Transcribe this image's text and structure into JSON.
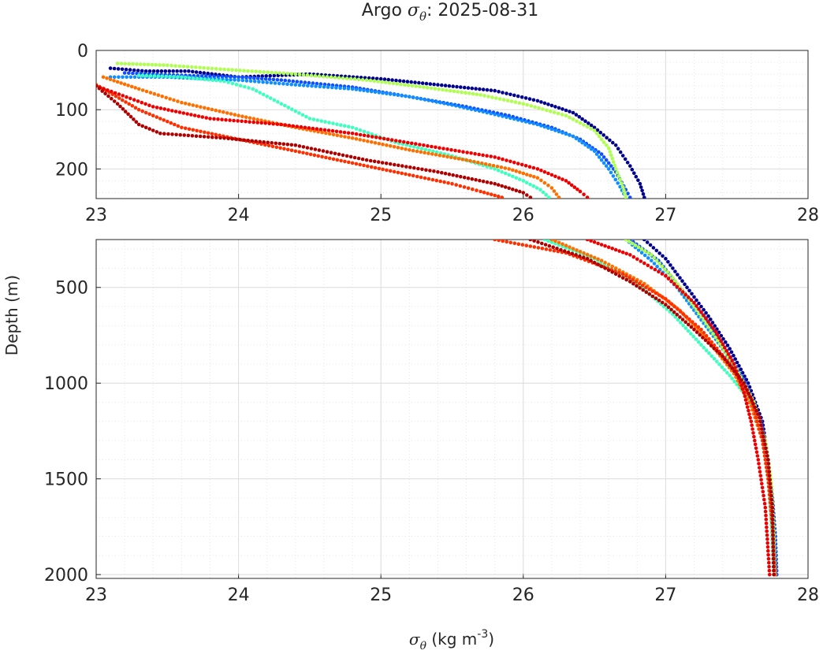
{
  "title": {
    "prefix": "Argo ",
    "symbol": "σ",
    "symbol_sub": "θ",
    "suffix": ": 2025-08-31"
  },
  "xlabel": {
    "symbol": "σ",
    "symbol_sub": "θ",
    "units_prefix": " (kg m",
    "units_exp": "-3",
    "units_suffix": ")"
  },
  "ylabel": "Depth (m)",
  "chart_data": [
    {
      "type": "scatter",
      "panel": "upper",
      "xlim": [
        23,
        28
      ],
      "ylim": [
        0,
        250
      ],
      "y_reversed": true,
      "xticks": [
        "23",
        "24",
        "25",
        "26",
        "27",
        "28"
      ],
      "yticks": [
        "0",
        "100",
        "200"
      ],
      "xtick_values": [
        23,
        24,
        25,
        26,
        27,
        28
      ],
      "ytick_values": [
        0,
        100,
        200
      ],
      "grid": true,
      "minor_grid": true,
      "series": [
        {
          "color": "#00008f",
          "points": [
            [
              23.1,
              30
            ],
            [
              23.35,
              35
            ],
            [
              23.65,
              35
            ],
            [
              24.0,
              45
            ],
            [
              24.5,
              40
            ],
            [
              25.0,
              48
            ],
            [
              25.4,
              58
            ],
            [
              25.8,
              68
            ],
            [
              26.1,
              85
            ],
            [
              26.35,
              105
            ],
            [
              26.5,
              130
            ],
            [
              26.65,
              160
            ],
            [
              26.75,
              195
            ],
            [
              26.82,
              225
            ],
            [
              26.85,
              248
            ]
          ]
        },
        {
          "color": "#0f4fff",
          "points": [
            [
              23.2,
              38
            ],
            [
              23.6,
              42
            ],
            [
              24.0,
              45
            ],
            [
              24.3,
              50
            ],
            [
              24.8,
              62
            ],
            [
              25.2,
              78
            ],
            [
              25.6,
              95
            ],
            [
              25.9,
              110
            ],
            [
              26.2,
              130
            ],
            [
              26.4,
              150
            ],
            [
              26.55,
              175
            ],
            [
              26.65,
              205
            ],
            [
              26.72,
              235
            ],
            [
              26.75,
              248
            ]
          ]
        },
        {
          "color": "#0f8fff",
          "points": [
            [
              23.1,
              45
            ],
            [
              23.5,
              45
            ],
            [
              24.0,
              50
            ],
            [
              24.4,
              58
            ],
            [
              24.8,
              65
            ],
            [
              25.2,
              78
            ],
            [
              25.5,
              92
            ],
            [
              25.8,
              108
            ],
            [
              26.1,
              125
            ],
            [
              26.35,
              145
            ],
            [
              26.5,
              170
            ],
            [
              26.6,
              200
            ],
            [
              26.68,
              230
            ],
            [
              26.72,
              248
            ]
          ]
        },
        {
          "color": "#3fffbf",
          "points": [
            [
              23.3,
              42
            ],
            [
              23.6,
              45
            ],
            [
              23.9,
              52
            ],
            [
              24.1,
              65
            ],
            [
              24.3,
              90
            ],
            [
              24.5,
              115
            ],
            [
              24.8,
              130
            ],
            [
              25.1,
              155
            ],
            [
              25.5,
              178
            ],
            [
              25.8,
              200
            ],
            [
              26.0,
              220
            ],
            [
              26.12,
              235
            ],
            [
              26.18,
              248
            ]
          ]
        },
        {
          "color": "#afff4f",
          "points": [
            [
              23.15,
              22
            ],
            [
              23.5,
              25
            ],
            [
              23.9,
              32
            ],
            [
              24.4,
              40
            ],
            [
              24.9,
              50
            ],
            [
              25.3,
              62
            ],
            [
              25.7,
              75
            ],
            [
              26.0,
              90
            ],
            [
              26.3,
              110
            ],
            [
              26.5,
              135
            ],
            [
              26.6,
              165
            ],
            [
              26.65,
              200
            ],
            [
              26.7,
              230
            ],
            [
              26.72,
              248
            ]
          ]
        },
        {
          "color": "#ff6f00",
          "points": [
            [
              23.05,
              45
            ],
            [
              23.3,
              65
            ],
            [
              23.6,
              88
            ],
            [
              24.0,
              110
            ],
            [
              24.4,
              130
            ],
            [
              24.8,
              148
            ],
            [
              25.2,
              168
            ],
            [
              25.6,
              185
            ],
            [
              25.9,
              200
            ],
            [
              26.1,
              215
            ],
            [
              26.2,
              232
            ],
            [
              26.25,
              248
            ]
          ]
        },
        {
          "color": "#ff2f00",
          "points": [
            [
              23.0,
              58
            ],
            [
              23.3,
              100
            ],
            [
              23.6,
              130
            ],
            [
              24.0,
              150
            ],
            [
              24.4,
              170
            ],
            [
              24.8,
              190
            ],
            [
              25.2,
              210
            ],
            [
              25.5,
              225
            ],
            [
              25.7,
              238
            ],
            [
              25.85,
              248
            ]
          ]
        },
        {
          "color": "#ef0000",
          "points": [
            [
              23.0,
              60
            ],
            [
              23.4,
              95
            ],
            [
              23.8,
              115
            ],
            [
              24.3,
              125
            ],
            [
              24.8,
              140
            ],
            [
              25.3,
              160
            ],
            [
              25.8,
              180
            ],
            [
              26.1,
              200
            ],
            [
              26.3,
              220
            ],
            [
              26.4,
              238
            ],
            [
              26.45,
              248
            ]
          ]
        },
        {
          "color": "#af0000",
          "points": [
            [
              23.0,
              60
            ],
            [
              23.15,
              90
            ],
            [
              23.3,
              125
            ],
            [
              23.45,
              140
            ],
            [
              23.9,
              148
            ],
            [
              24.4,
              160
            ],
            [
              24.9,
              185
            ],
            [
              25.4,
              205
            ],
            [
              25.8,
              225
            ],
            [
              26.0,
              240
            ],
            [
              26.05,
              248
            ]
          ]
        }
      ]
    },
    {
      "type": "scatter",
      "panel": "lower",
      "xlim": [
        23,
        28
      ],
      "ylim": [
        250,
        2020
      ],
      "y_reversed": true,
      "xticks": [
        "23",
        "24",
        "25",
        "26",
        "27",
        "28"
      ],
      "yticks": [
        "500",
        "1000",
        "1500",
        "2000"
      ],
      "xtick_values": [
        23,
        24,
        25,
        26,
        27,
        28
      ],
      "ytick_values": [
        500,
        1000,
        1500,
        2000
      ],
      "grid": true,
      "minor_grid": true,
      "series": [
        {
          "color": "#00008f",
          "points": [
            [
              26.85,
              250
            ],
            [
              27.0,
              350
            ],
            [
              27.15,
              500
            ],
            [
              27.3,
              650
            ],
            [
              27.45,
              820
            ],
            [
              27.58,
              1000
            ],
            [
              27.68,
              1200
            ],
            [
              27.72,
              1400
            ],
            [
              27.75,
              1600
            ],
            [
              27.77,
              1800
            ],
            [
              27.78,
              2000
            ]
          ]
        },
        {
          "color": "#0f4fff",
          "points": [
            [
              26.75,
              250
            ],
            [
              26.95,
              360
            ],
            [
              27.1,
              500
            ],
            [
              27.28,
              660
            ],
            [
              27.43,
              830
            ],
            [
              27.56,
              1000
            ],
            [
              27.67,
              1200
            ],
            [
              27.72,
              1400
            ],
            [
              27.75,
              1600
            ],
            [
              27.77,
              1800
            ],
            [
              27.78,
              2000
            ]
          ]
        },
        {
          "color": "#0f8fff",
          "points": [
            [
              26.72,
              250
            ],
            [
              26.9,
              360
            ],
            [
              27.08,
              500
            ],
            [
              27.25,
              670
            ],
            [
              27.42,
              840
            ],
            [
              27.55,
              1010
            ],
            [
              27.66,
              1200
            ],
            [
              27.71,
              1400
            ],
            [
              27.74,
              1600
            ],
            [
              27.76,
              1800
            ],
            [
              27.77,
              2000
            ]
          ]
        },
        {
          "color": "#3fffbf",
          "points": [
            [
              26.15,
              250
            ],
            [
              26.5,
              350
            ],
            [
              26.8,
              480
            ],
            [
              27.05,
              640
            ],
            [
              27.25,
              800
            ],
            [
              27.45,
              960
            ],
            [
              27.6,
              1100
            ],
            [
              27.68,
              1300
            ],
            [
              27.72,
              1500
            ],
            [
              27.74,
              1700
            ],
            [
              27.76,
              2000
            ]
          ]
        },
        {
          "color": "#afff4f",
          "points": [
            [
              26.72,
              250
            ],
            [
              26.9,
              330
            ],
            [
              27.05,
              450
            ],
            [
              27.2,
              600
            ],
            [
              27.35,
              760
            ],
            [
              27.5,
              930
            ],
            [
              27.62,
              1100
            ],
            [
              27.7,
              1300
            ],
            [
              27.74,
              1500
            ],
            [
              27.76,
              1750
            ],
            [
              27.77,
              2000
            ]
          ]
        },
        {
          "color": "#ff6f00",
          "points": [
            [
              26.2,
              250
            ],
            [
              26.55,
              360
            ],
            [
              26.85,
              480
            ],
            [
              27.1,
              620
            ],
            [
              27.3,
              780
            ],
            [
              27.48,
              950
            ],
            [
              27.6,
              1120
            ],
            [
              27.68,
              1300
            ],
            [
              27.72,
              1500
            ],
            [
              27.75,
              1750
            ],
            [
              27.77,
              2000
            ]
          ]
        },
        {
          "color": "#ff2f00",
          "points": [
            [
              25.8,
              250
            ],
            [
              26.3,
              320
            ],
            [
              26.7,
              430
            ],
            [
              27.0,
              560
            ],
            [
              27.25,
              720
            ],
            [
              27.45,
              900
            ],
            [
              27.6,
              1080
            ],
            [
              27.68,
              1300
            ],
            [
              27.72,
              1500
            ],
            [
              27.75,
              1750
            ],
            [
              27.76,
              2000
            ]
          ]
        },
        {
          "color": "#ef0000",
          "points": [
            [
              26.45,
              250
            ],
            [
              26.75,
              330
            ],
            [
              27.0,
              440
            ],
            [
              27.2,
              580
            ],
            [
              27.35,
              730
            ],
            [
              27.48,
              900
            ],
            [
              27.55,
              1050
            ],
            [
              27.6,
              1200
            ],
            [
              27.65,
              1400
            ],
            [
              27.7,
              1650
            ],
            [
              27.73,
              2000
            ]
          ]
        },
        {
          "color": "#af0000",
          "points": [
            [
              26.05,
              250
            ],
            [
              26.45,
              350
            ],
            [
              26.75,
              470
            ],
            [
              27.0,
              590
            ],
            [
              27.2,
              720
            ],
            [
              27.4,
              860
            ],
            [
              27.55,
              1000
            ],
            [
              27.66,
              1180
            ],
            [
              27.72,
              1400
            ],
            [
              27.75,
              1650
            ],
            [
              27.76,
              2000
            ]
          ]
        }
      ]
    }
  ]
}
